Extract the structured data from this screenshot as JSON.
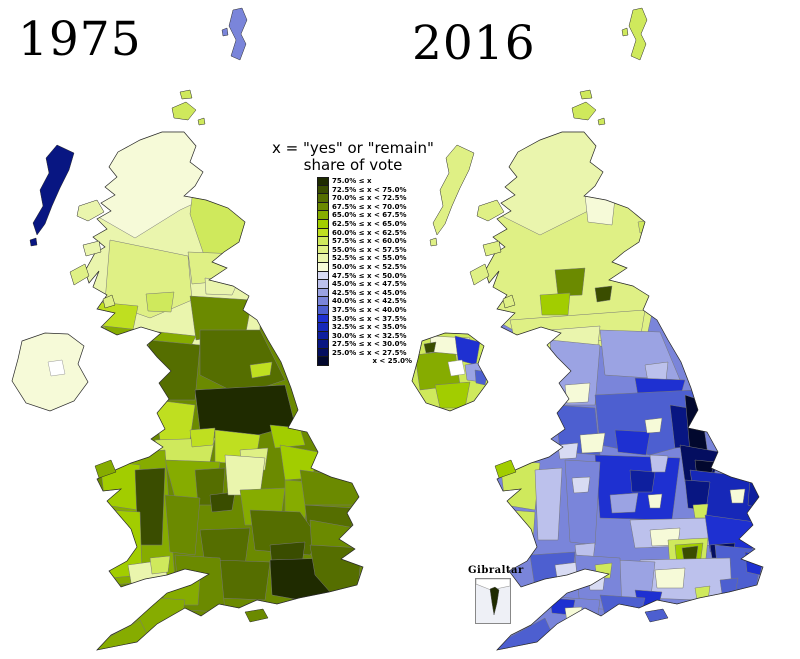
{
  "left_map": {
    "title": "1975"
  },
  "right_map": {
    "title": "2016"
  },
  "legend": {
    "title_line1": "x = \"yes\" or \"remain\"",
    "title_line2": "share of vote",
    "entries": [
      {
        "label": "75.0% ≤ x",
        "color": "#1f2b00"
      },
      {
        "label": "72.5% ≤ x < 75.0%",
        "color": "#3a4d00"
      },
      {
        "label": "70.0% ≤ x < 72.5%",
        "color": "#556e00"
      },
      {
        "label": "67.5% ≤ x < 70.0%",
        "color": "#6b8a00"
      },
      {
        "label": "65.0% ≤ x < 67.5%",
        "color": "#86ac00"
      },
      {
        "label": "62.5% ≤ x < 65.0%",
        "color": "#a2cd00"
      },
      {
        "label": "60.0% ≤ x < 62.5%",
        "color": "#bfdf20"
      },
      {
        "label": "57.5% ≤ x < 60.0%",
        "color": "#cfe95c"
      },
      {
        "label": "55.0% ≤ x < 57.5%",
        "color": "#dff085"
      },
      {
        "label": "52.5% ≤ x < 55.0%",
        "color": "#eaf5ad"
      },
      {
        "label": "50.0% ≤ x < 52.5%",
        "color": "#f6fad8"
      },
      {
        "label": "47.5% ≤ x < 50.0%",
        "color": "#d8dbf3"
      },
      {
        "label": "45.0% ≤ x < 47.5%",
        "color": "#bcc1ec"
      },
      {
        "label": "42.5% ≤ x < 45.0%",
        "color": "#9ba3e3"
      },
      {
        "label": "40.0% ≤ x < 42.5%",
        "color": "#7a85da"
      },
      {
        "label": "37.5% ≤ x < 40.0%",
        "color": "#4d5fd0"
      },
      {
        "label": "35.0% ≤ x < 37.5%",
        "color": "#1e30d1"
      },
      {
        "label": "32.5% ≤ x < 35.0%",
        "color": "#1628b8"
      },
      {
        "label": "30.0% ≤ x < 32.5%",
        "color": "#0e1f9e"
      },
      {
        "label": "27.5% ≤ x < 30.0%",
        "color": "#081682"
      },
      {
        "label": "25.0% ≤ x < 27.5%",
        "color": "#040e60"
      },
      {
        "label": "x < 25.0%",
        "color": "#02082e"
      }
    ]
  },
  "inset": {
    "label": "Gibraltar"
  },
  "colors": {
    "background": "#ffffff",
    "coast_stroke": "#2a2a2a",
    "region_stroke": "#777777",
    "lake": "#ffffff",
    "inset_sea": "#eef0f6"
  }
}
